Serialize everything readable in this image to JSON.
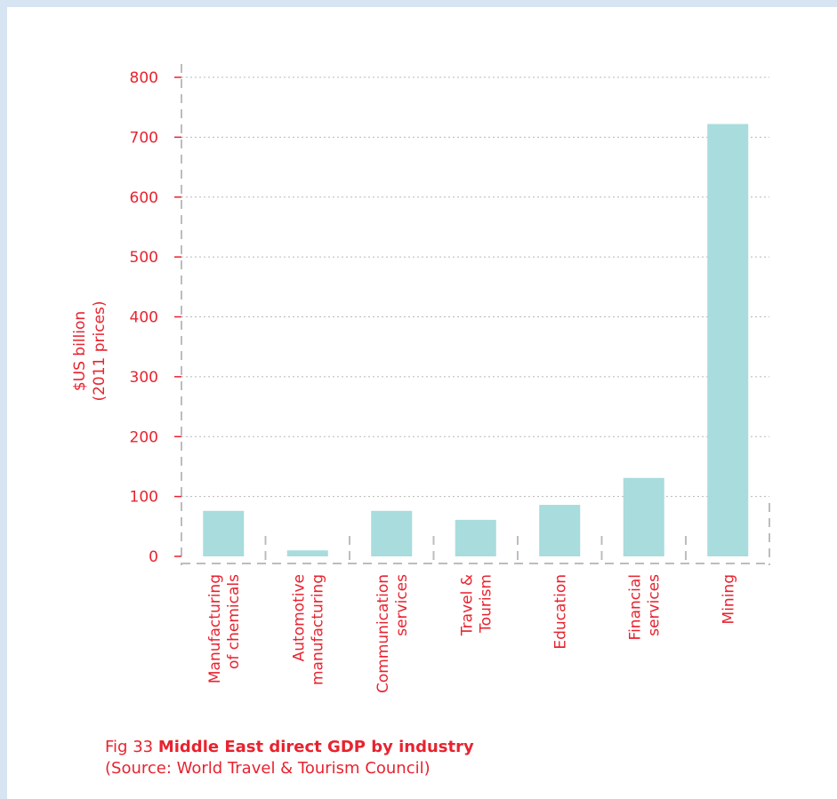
{
  "colors": {
    "background": "#d7e4f2",
    "panel": "#ffffff",
    "accent": "#e8232f",
    "bar": "#a8dcdd",
    "grid": "#b8b8b8",
    "dashes": "#bdbdbd"
  },
  "caption": {
    "fig_label": "Fig 33",
    "title": "Middle East direct GDP by industry",
    "source": "(Source: World Travel & Tourism Council)"
  },
  "chart_data": {
    "type": "bar",
    "title": "Middle East direct GDP by industry",
    "ylabel_lines": [
      "$US billion",
      "(2011 prices)"
    ],
    "xlabel": "",
    "ylim": [
      0,
      800
    ],
    "yticks": [
      "0",
      "100",
      "200",
      "300",
      "400",
      "500",
      "600",
      "700",
      "800"
    ],
    "grid": true,
    "categories": [
      [
        "Manufacturing",
        "of chemicals"
      ],
      [
        "Automotive",
        "manufacturing"
      ],
      [
        "Communication",
        "services"
      ],
      [
        "Travel &",
        "Tourism"
      ],
      [
        "Education"
      ],
      [
        "Financial",
        "services"
      ],
      [
        "Mining"
      ]
    ],
    "values": [
      76,
      10,
      76,
      61,
      86,
      131,
      722
    ]
  }
}
